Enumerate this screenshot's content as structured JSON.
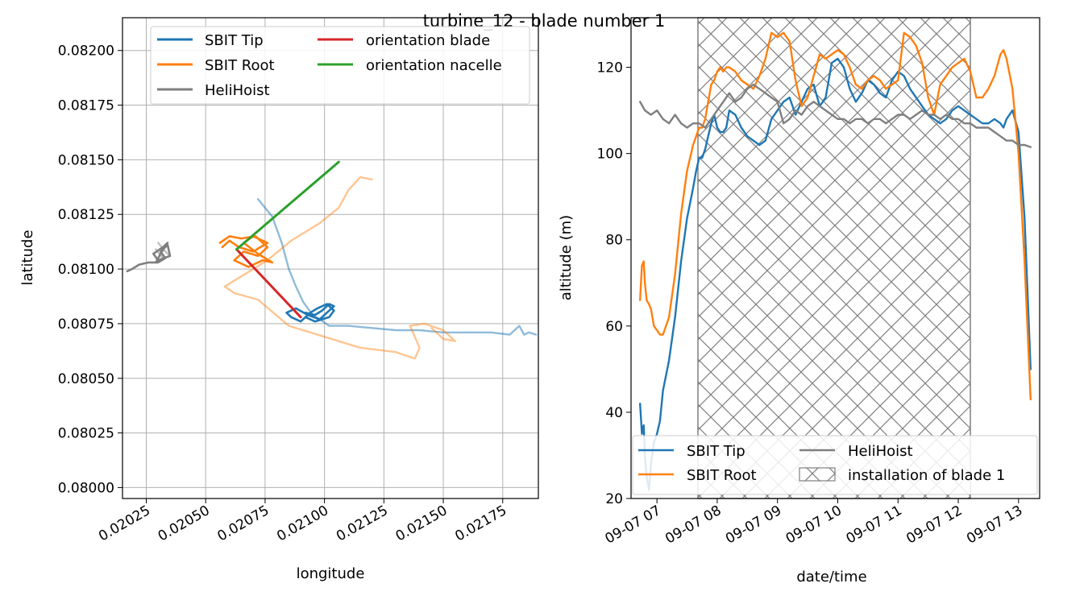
{
  "figure": {
    "suptitle": "turbine_12 - blade number 1"
  },
  "chart_data": [
    {
      "type": "line",
      "xlabel": "longitude",
      "ylabel": "latitude",
      "xlim": [
        0.02015,
        0.0219
      ],
      "ylim": [
        0.07995,
        0.08215
      ],
      "xticks": [
        0.02025,
        0.0205,
        0.02075,
        0.021,
        0.02125,
        0.0215,
        0.02175
      ],
      "xtick_labels": [
        "0.02025",
        "0.02050",
        "0.02075",
        "0.02100",
        "0.02125",
        "0.02150",
        "0.02175"
      ],
      "yticks": [
        0.08,
        0.08025,
        0.0805,
        0.08075,
        0.081,
        0.08125,
        0.0815,
        0.08175,
        0.082
      ],
      "ytick_labels": [
        "0.08000",
        "0.08025",
        "0.08050",
        "0.08075",
        "0.08100",
        "0.08125",
        "0.08150",
        "0.08175",
        "0.08200"
      ],
      "grid": true,
      "legend_position": "top",
      "series": [
        {
          "name": "SBIT Tip",
          "color": "#1f77b4",
          "alpha": 1.0,
          "width": 2.6,
          "x": [
            0.02092,
            0.02096,
            0.02102,
            0.02104,
            0.02101,
            0.02097,
            0.02094,
            0.0209,
            0.02086,
            0.02084,
            0.02088,
            0.02093,
            0.02098,
            0.02101,
            0.02104,
            0.02102,
            0.02099,
            0.02096,
            0.02092
          ],
          "y": [
            0.08078,
            0.08076,
            0.08078,
            0.08081,
            0.08084,
            0.08082,
            0.0808,
            0.08076,
            0.08078,
            0.0808,
            0.08082,
            0.08079,
            0.08077,
            0.0808,
            0.08083,
            0.08084,
            0.08081,
            0.08079,
            0.0808
          ]
        },
        {
          "name": "",
          "color": "#1f77b4",
          "alpha": 0.5,
          "width": 2.4,
          "x": [
            0.02072,
            0.02078,
            0.02082,
            0.02085,
            0.02088,
            0.02091,
            0.02095,
            0.02098,
            0.02102,
            0.0211,
            0.0212,
            0.0213,
            0.0214,
            0.0215,
            0.0216,
            0.0217,
            0.02178,
            0.02182,
            0.02184,
            0.02186,
            0.02189
          ],
          "y": [
            0.08132,
            0.08124,
            0.08112,
            0.081,
            0.08092,
            0.08085,
            0.08079,
            0.08077,
            0.08074,
            0.08074,
            0.08073,
            0.08072,
            0.08072,
            0.08071,
            0.08071,
            0.08071,
            0.0807,
            0.08074,
            0.0807,
            0.08071,
            0.0807
          ]
        },
        {
          "name": "SBIT Root",
          "color": "#ff7f0e",
          "alpha": 1.0,
          "width": 2.6,
          "x": [
            0.02056,
            0.0206,
            0.02065,
            0.02071,
            0.02076,
            0.02072,
            0.02066,
            0.02062,
            0.02068,
            0.02074,
            0.02078,
            0.02072,
            0.02066,
            0.0207,
            0.02076,
            0.0207,
            0.02064,
            0.0206,
            0.02057
          ],
          "y": [
            0.08112,
            0.08115,
            0.08114,
            0.08115,
            0.0811,
            0.08106,
            0.08108,
            0.08104,
            0.08101,
            0.08104,
            0.08103,
            0.08107,
            0.08112,
            0.08115,
            0.08112,
            0.08108,
            0.0811,
            0.08113,
            0.0811
          ]
        },
        {
          "name": "",
          "color": "#ff7f0e",
          "alpha": 0.45,
          "width": 2.4,
          "x": [
            0.0212,
            0.02115,
            0.0211,
            0.02106,
            0.02098,
            0.02086,
            0.02076,
            0.02064,
            0.02058,
            0.02062,
            0.02072,
            0.02085,
            0.021,
            0.02115,
            0.0213,
            0.02138,
            0.0214,
            0.02136,
            0.02142,
            0.0215,
            0.02155,
            0.0215,
            0.02145
          ],
          "y": [
            0.08141,
            0.08142,
            0.08136,
            0.08128,
            0.08121,
            0.08113,
            0.08104,
            0.08096,
            0.08092,
            0.08089,
            0.08086,
            0.08074,
            0.08069,
            0.08064,
            0.08062,
            0.08059,
            0.08064,
            0.08074,
            0.08075,
            0.08072,
            0.08067,
            0.08068,
            0.08073
          ]
        },
        {
          "name": "HeliHoist",
          "color": "#7f7f7f",
          "alpha": 1.0,
          "width": 2.6,
          "x": [
            0.02017,
            0.02019,
            0.02022,
            0.02026,
            0.0203,
            0.02033,
            0.02031,
            0.02034,
            0.02035,
            0.0203,
            0.02028,
            0.02032,
            0.02034,
            0.02031,
            0.02029
          ],
          "y": [
            0.08099,
            0.081,
            0.08102,
            0.08103,
            0.08103,
            0.08105,
            0.08108,
            0.08111,
            0.08106,
            0.08104,
            0.08107,
            0.0811,
            0.08112,
            0.08107,
            0.08103
          ]
        },
        {
          "name": "",
          "color": "#7f7f7f",
          "alpha": 0.5,
          "width": 2.4,
          "x": [
            0.0203,
            0.02033,
            0.02035,
            0.02032,
            0.02029
          ],
          "y": [
            0.08112,
            0.08108,
            0.08106,
            0.08105,
            0.08109
          ]
        },
        {
          "name": "orientation blade",
          "color": "#d62728",
          "alpha": 1.0,
          "width": 3,
          "x": [
            0.02063,
            0.0209
          ],
          "y": [
            0.08109,
            0.08078
          ]
        },
        {
          "name": "orientation nacelle",
          "color": "#2ca02c",
          "alpha": 1.0,
          "width": 3,
          "x": [
            0.02063,
            0.02106
          ],
          "y": [
            0.08109,
            0.08149
          ]
        }
      ]
    },
    {
      "type": "line",
      "xlabel": "date/time",
      "ylabel": "altitude (m)",
      "xlim": [
        6.57,
        13.35
      ],
      "ylim": [
        20,
        131.5
      ],
      "xticks": [
        7,
        8,
        9,
        10,
        11,
        12,
        13
      ],
      "xtick_labels": [
        "09-07 07",
        "09-07 08",
        "09-07 09",
        "09-07 10",
        "09-07 11",
        "09-07 12",
        "09-07 13"
      ],
      "yticks": [
        20,
        40,
        60,
        80,
        100,
        120
      ],
      "ytick_labels": [
        "20",
        "40",
        "60",
        "80",
        "100",
        "120"
      ],
      "grid": false,
      "legend_position": "lower center",
      "hatched_region": {
        "label": "installation of blade 1",
        "x_start": 7.68,
        "x_end": 12.2
      },
      "series": [
        {
          "name": "SBIT Tip",
          "color": "#1f77b4",
          "x": [
            6.72,
            6.75,
            6.78,
            6.8,
            6.83,
            6.87,
            6.9,
            6.95,
            7.0,
            7.05,
            7.1,
            7.2,
            7.3,
            7.4,
            7.5,
            7.6,
            7.65,
            7.7,
            7.75,
            7.8,
            7.85,
            7.9,
            7.95,
            8.0,
            8.05,
            8.1,
            8.15,
            8.2,
            8.3,
            8.4,
            8.5,
            8.6,
            8.7,
            8.8,
            8.9,
            9.0,
            9.1,
            9.2,
            9.3,
            9.4,
            9.5,
            9.6,
            9.7,
            9.8,
            9.9,
            10.0,
            10.1,
            10.2,
            10.3,
            10.4,
            10.5,
            10.6,
            10.7,
            10.8,
            10.9,
            11.0,
            11.1,
            11.2,
            11.3,
            11.4,
            11.5,
            11.6,
            11.7,
            11.8,
            11.9,
            12.0,
            12.1,
            12.2,
            12.3,
            12.4,
            12.5,
            12.6,
            12.7,
            12.75,
            12.8,
            12.9,
            13.0,
            13.1,
            13.2
          ],
          "y": [
            42,
            35,
            37,
            30,
            25,
            22,
            28,
            33,
            35,
            38,
            45,
            52,
            62,
            75,
            85,
            92,
            96,
            99,
            99,
            101,
            104,
            107,
            109,
            106,
            105,
            105,
            106,
            110,
            109,
            106,
            104,
            103,
            102,
            103,
            108,
            110,
            112,
            113,
            109,
            112,
            115,
            116,
            111,
            113,
            121,
            122,
            120,
            115,
            112,
            114,
            117,
            116,
            114,
            113,
            117,
            119,
            118,
            115,
            113,
            111,
            109,
            108,
            107,
            108,
            110,
            111,
            110,
            109,
            108,
            107,
            107,
            108,
            107,
            106,
            108,
            110,
            105,
            85,
            50
          ]
        },
        {
          "name": "SBIT Root",
          "color": "#ff7f0e",
          "x": [
            6.72,
            6.75,
            6.78,
            6.8,
            6.83,
            6.87,
            6.9,
            6.95,
            7.0,
            7.05,
            7.1,
            7.2,
            7.3,
            7.4,
            7.5,
            7.6,
            7.65,
            7.7,
            7.75,
            7.8,
            7.85,
            7.9,
            7.95,
            8.0,
            8.05,
            8.1,
            8.15,
            8.2,
            8.3,
            8.4,
            8.5,
            8.6,
            8.7,
            8.8,
            8.9,
            9.0,
            9.1,
            9.2,
            9.3,
            9.4,
            9.5,
            9.6,
            9.7,
            9.8,
            9.9,
            10.0,
            10.1,
            10.2,
            10.3,
            10.4,
            10.5,
            10.6,
            10.7,
            10.8,
            10.9,
            11.0,
            11.1,
            11.2,
            11.3,
            11.4,
            11.5,
            11.6,
            11.7,
            11.8,
            11.9,
            12.0,
            12.1,
            12.2,
            12.3,
            12.4,
            12.5,
            12.6,
            12.7,
            12.75,
            12.8,
            12.9,
            13.0,
            13.1,
            13.2
          ],
          "y": [
            66,
            74,
            75,
            70,
            66,
            65,
            64,
            60,
            59,
            58,
            58,
            62,
            72,
            86,
            96,
            102,
            104,
            106,
            106,
            108,
            112,
            116,
            117,
            119,
            120,
            119,
            120,
            120,
            119,
            117,
            116,
            115,
            118,
            122,
            128,
            127,
            128,
            126,
            117,
            111,
            113,
            118,
            123,
            122,
            123,
            124,
            123,
            120,
            116,
            115,
            117,
            118,
            117,
            115,
            116,
            117,
            128,
            127,
            125,
            121,
            113,
            109,
            116,
            118,
            120,
            121,
            122,
            119,
            113,
            113,
            115,
            118,
            123,
            124,
            122,
            115,
            100,
            75,
            43
          ]
        },
        {
          "name": "HeliHoist",
          "color": "#7f7f7f",
          "x": [
            6.72,
            6.8,
            6.9,
            7.0,
            7.1,
            7.2,
            7.3,
            7.4,
            7.5,
            7.6,
            7.7,
            7.8,
            7.9,
            8.0,
            8.1,
            8.2,
            8.3,
            8.4,
            8.5,
            8.6,
            8.7,
            8.8,
            8.9,
            9.0,
            9.1,
            9.2,
            9.3,
            9.4,
            9.5,
            9.6,
            9.7,
            9.8,
            9.9,
            10.0,
            10.1,
            10.2,
            10.3,
            10.4,
            10.5,
            10.6,
            10.7,
            10.8,
            10.9,
            11.0,
            11.1,
            11.2,
            11.3,
            11.4,
            11.5,
            11.6,
            11.7,
            11.8,
            11.9,
            12.0,
            12.1,
            12.2,
            12.3,
            12.4,
            12.5,
            12.6,
            12.7,
            12.8,
            12.9,
            13.0,
            13.1,
            13.2
          ],
          "y": [
            112,
            110,
            109,
            110,
            108,
            107,
            109,
            107,
            106,
            107,
            107,
            106,
            108,
            110,
            112,
            114,
            112,
            113,
            115,
            116,
            115,
            114,
            113,
            112,
            107,
            108,
            110,
            109,
            111,
            112,
            111,
            110,
            109,
            108,
            108,
            107,
            108,
            108,
            107,
            108,
            108,
            107,
            108,
            109,
            109,
            108,
            109,
            110,
            109,
            109,
            108,
            109,
            108,
            108,
            107,
            107,
            106,
            106,
            106,
            105,
            104,
            103,
            103,
            102,
            102,
            101.5
          ]
        }
      ]
    }
  ]
}
